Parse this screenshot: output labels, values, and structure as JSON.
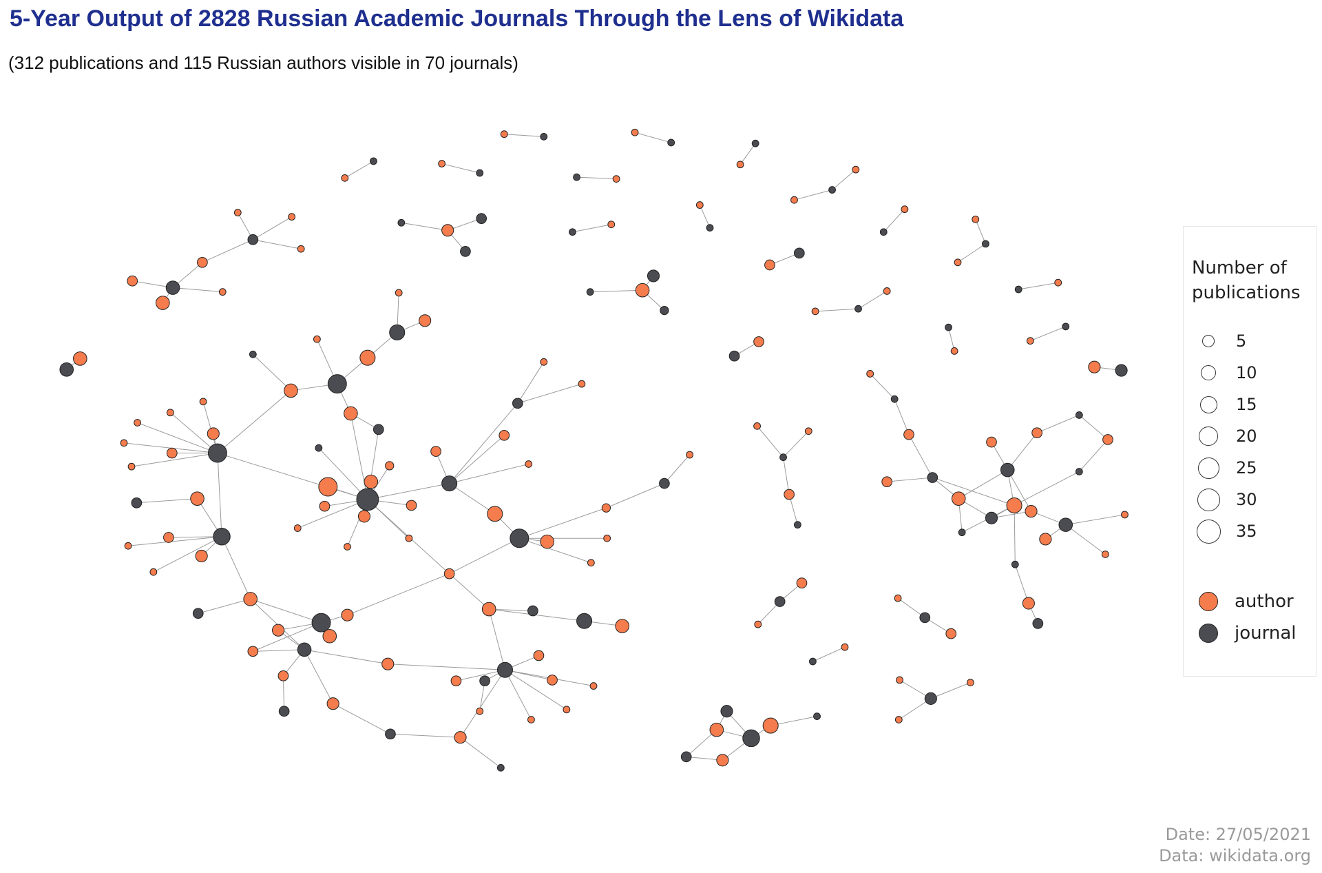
{
  "title": "5-Year Output of 2828 Russian Academic Journals Through the Lens of Wikidata",
  "subtitle": "(312 publications and 115 Russian authors visible in 70 journals)",
  "legend": {
    "title_line1": "Number of",
    "title_line2": "publications",
    "sizes": [
      "5",
      "10",
      "15",
      "20",
      "25",
      "30",
      "35"
    ],
    "types": [
      {
        "label": "author",
        "color": "#f47c4d"
      },
      {
        "label": "journal",
        "color": "#4a4c51"
      }
    ]
  },
  "footer": {
    "date": "Date: 27/05/2021",
    "source": "Data: wikidata.org"
  },
  "colors": {
    "author": "#f47c4d",
    "journal": "#4a4c51",
    "edge": "#9a9a9a"
  }
}
